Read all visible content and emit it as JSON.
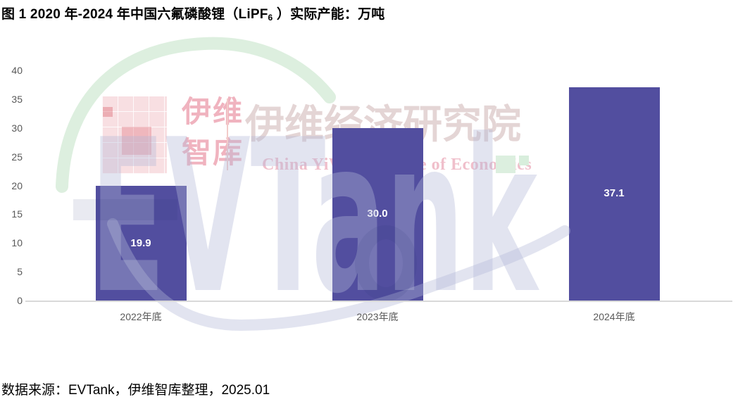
{
  "figure": {
    "title_prefix": "图  1 2020 年-2024 年中国六氟磷酸锂（LiPF",
    "title_sub": "6",
    "title_suffix": " ）实际产能：万吨",
    "source": "数据来源：EVTank，伊维智库整理，2025.01"
  },
  "watermark": {
    "brand": "EVTank",
    "cn_name_1": "伊维",
    "cn_name_2": "智库",
    "cn_institute": "伊维经济研究院",
    "en_institute": "China YiWei Institute of Economics",
    "accent_green": "#DCEFDF",
    "accent_pink": "#F0B3BF",
    "accent_red_fill": "rgba(233,150,158,0.30)",
    "letters_fill": "rgba(178,184,216,0.38)",
    "dark_overlay_fill": "rgba(40,45,120,0.10)"
  },
  "chart_data": {
    "type": "bar",
    "title": "2020年-2024年中国六氟磷酸锂（LiPF6）实际产能：万吨",
    "categories": [
      "2022年底",
      "2023年底",
      "2024年底"
    ],
    "values": [
      19.9,
      30.0,
      37.1
    ],
    "value_labels": [
      "19.9",
      "30.0",
      "37.1"
    ],
    "xlabel": "",
    "ylabel": "",
    "unit": "万吨",
    "ylim": [
      0,
      40
    ],
    "yticks": [
      0,
      5,
      10,
      15,
      20,
      25,
      30,
      35,
      40
    ],
    "grid": false,
    "legend": false,
    "bar_color": "#524E9F",
    "value_label_color": "#FFFFFF",
    "axis_label_color": "#595959",
    "axis_line_color": "#D9D9D9"
  }
}
